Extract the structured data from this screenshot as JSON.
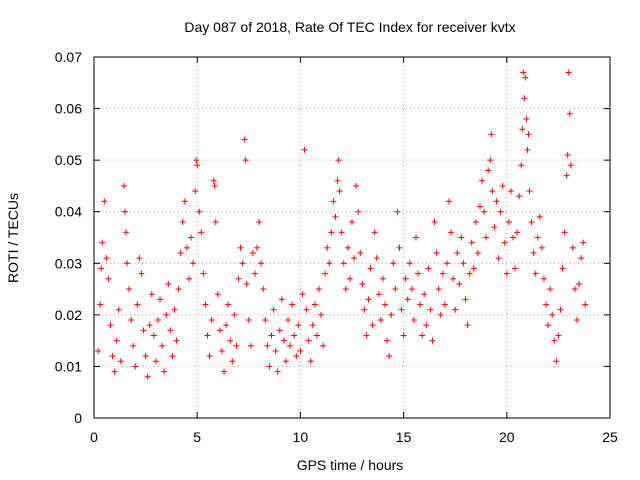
{
  "chart_data": {
    "type": "scatter",
    "title": "Day 087 of 2018, Rate Of TEC Index for receiver kvtx",
    "xlabel": "GPS time / hours",
    "ylabel": "ROTI / TECUs",
    "xlim": [
      0,
      25
    ],
    "ylim": [
      0,
      0.07
    ],
    "xticks": [
      0,
      5,
      10,
      15,
      20,
      25
    ],
    "xtick_labels": [
      "0",
      "5",
      "10",
      "15",
      "20",
      "25"
    ],
    "yticks": [
      0,
      0.01,
      0.02,
      0.03,
      0.04,
      0.05,
      0.06,
      0.07
    ],
    "ytick_labels": [
      "0",
      "0.01",
      "0.02",
      "0.03",
      "0.04",
      "0.05",
      "0.06",
      "0.07"
    ],
    "grid": true,
    "marker": "+",
    "series_color": "#ff0000",
    "series": [
      {
        "name": "ROTI",
        "points": [
          [
            0.2,
            0.013
          ],
          [
            0.3,
            0.022
          ],
          [
            0.35,
            0.029
          ],
          [
            0.4,
            0.034
          ],
          [
            0.5,
            0.042
          ],
          [
            0.6,
            0.031
          ],
          [
            0.7,
            0.027
          ],
          [
            0.8,
            0.018
          ],
          [
            0.9,
            0.012
          ],
          [
            1.0,
            0.009
          ],
          [
            1.1,
            0.015
          ],
          [
            1.2,
            0.021
          ],
          [
            1.3,
            0.011
          ],
          [
            1.45,
            0.045
          ],
          [
            1.5,
            0.04
          ],
          [
            1.55,
            0.036
          ],
          [
            1.6,
            0.03
          ],
          [
            1.7,
            0.025
          ],
          [
            1.8,
            0.019
          ],
          [
            1.9,
            0.014
          ],
          [
            2.0,
            0.01
          ],
          [
            2.1,
            0.022
          ],
          [
            2.2,
            0.031
          ],
          [
            2.3,
            0.028
          ],
          [
            2.4,
            0.017
          ],
          [
            2.5,
            0.012
          ],
          [
            2.6,
            0.008
          ],
          [
            2.7,
            0.018
          ],
          [
            2.8,
            0.024
          ],
          [
            2.9,
            0.016
          ],
          [
            3.0,
            0.011
          ],
          [
            3.1,
            0.019
          ],
          [
            3.2,
            0.023
          ],
          [
            3.3,
            0.014
          ],
          [
            3.4,
            0.009
          ],
          [
            3.5,
            0.02
          ],
          [
            3.6,
            0.026
          ],
          [
            3.7,
            0.017
          ],
          [
            3.8,
            0.012
          ],
          [
            3.9,
            0.021
          ],
          [
            4.0,
            0.015
          ],
          [
            4.1,
            0.025
          ],
          [
            4.2,
            0.032
          ],
          [
            4.3,
            0.038
          ],
          [
            4.4,
            0.042
          ],
          [
            4.5,
            0.033
          ],
          [
            4.6,
            0.027
          ],
          [
            4.7,
            0.035
          ],
          [
            4.8,
            0.03
          ],
          [
            4.9,
            0.044
          ],
          [
            4.95,
            0.05
          ],
          [
            5.0,
            0.049
          ],
          [
            5.1,
            0.04
          ],
          [
            5.2,
            0.036
          ],
          [
            5.3,
            0.028
          ],
          [
            5.4,
            0.022
          ],
          [
            5.5,
            0.016
          ],
          [
            5.6,
            0.012
          ],
          [
            5.7,
            0.019
          ],
          [
            5.8,
            0.046
          ],
          [
            5.85,
            0.045
          ],
          [
            5.9,
            0.038
          ],
          [
            6.0,
            0.024
          ],
          [
            6.1,
            0.017
          ],
          [
            6.2,
            0.013
          ],
          [
            6.3,
            0.009
          ],
          [
            6.4,
            0.018
          ],
          [
            6.5,
            0.022
          ],
          [
            6.6,
            0.015
          ],
          [
            6.7,
            0.011
          ],
          [
            6.8,
            0.02
          ],
          [
            6.9,
            0.014
          ],
          [
            7.0,
            0.027
          ],
          [
            7.1,
            0.033
          ],
          [
            7.2,
            0.03
          ],
          [
            7.3,
            0.054
          ],
          [
            7.35,
            0.05
          ],
          [
            7.4,
            0.026
          ],
          [
            7.5,
            0.019
          ],
          [
            7.6,
            0.014
          ],
          [
            7.7,
            0.032
          ],
          [
            7.8,
            0.028
          ],
          [
            7.9,
            0.033
          ],
          [
            8.0,
            0.038
          ],
          [
            8.1,
            0.03
          ],
          [
            8.2,
            0.025
          ],
          [
            8.3,
            0.019
          ],
          [
            8.4,
            0.014
          ],
          [
            8.5,
            0.01
          ],
          [
            8.6,
            0.016
          ],
          [
            8.7,
            0.021
          ],
          [
            8.8,
            0.013
          ],
          [
            8.9,
            0.009
          ],
          [
            9.0,
            0.017
          ],
          [
            9.1,
            0.023
          ],
          [
            9.2,
            0.015
          ],
          [
            9.3,
            0.011
          ],
          [
            9.4,
            0.019
          ],
          [
            9.5,
            0.014
          ],
          [
            9.6,
            0.022
          ],
          [
            9.7,
            0.016
          ],
          [
            9.8,
            0.012
          ],
          [
            9.9,
            0.018
          ],
          [
            10.0,
            0.013
          ],
          [
            10.1,
            0.024
          ],
          [
            10.2,
            0.052
          ],
          [
            10.3,
            0.021
          ],
          [
            10.4,
            0.015
          ],
          [
            10.5,
            0.011
          ],
          [
            10.6,
            0.018
          ],
          [
            10.7,
            0.022
          ],
          [
            10.8,
            0.016
          ],
          [
            10.9,
            0.025
          ],
          [
            11.0,
            0.02
          ],
          [
            11.1,
            0.014
          ],
          [
            11.2,
            0.028
          ],
          [
            11.3,
            0.033
          ],
          [
            11.4,
            0.03
          ],
          [
            11.5,
            0.036
          ],
          [
            11.6,
            0.042
          ],
          [
            11.7,
            0.039
          ],
          [
            11.8,
            0.046
          ],
          [
            11.85,
            0.05
          ],
          [
            11.9,
            0.044
          ],
          [
            12.0,
            0.036
          ],
          [
            12.1,
            0.03
          ],
          [
            12.2,
            0.025
          ],
          [
            12.3,
            0.033
          ],
          [
            12.4,
            0.027
          ],
          [
            12.5,
            0.038
          ],
          [
            12.6,
            0.031
          ],
          [
            12.7,
            0.045
          ],
          [
            12.8,
            0.04
          ],
          [
            12.9,
            0.032
          ],
          [
            13.0,
            0.026
          ],
          [
            13.1,
            0.021
          ],
          [
            13.2,
            0.016
          ],
          [
            13.3,
            0.023
          ],
          [
            13.4,
            0.029
          ],
          [
            13.5,
            0.018
          ],
          [
            13.6,
            0.036
          ],
          [
            13.7,
            0.031
          ],
          [
            13.8,
            0.024
          ],
          [
            13.9,
            0.019
          ],
          [
            14.0,
            0.027
          ],
          [
            14.1,
            0.022
          ],
          [
            14.2,
            0.015
          ],
          [
            14.3,
            0.012
          ],
          [
            14.4,
            0.02
          ],
          [
            14.5,
            0.03
          ],
          [
            14.6,
            0.025
          ],
          [
            14.7,
            0.04
          ],
          [
            14.8,
            0.033
          ],
          [
            14.9,
            0.021
          ],
          [
            15.0,
            0.016
          ],
          [
            15.1,
            0.027
          ],
          [
            15.2,
            0.023
          ],
          [
            15.3,
            0.03
          ],
          [
            15.4,
            0.025
          ],
          [
            15.5,
            0.019
          ],
          [
            15.6,
            0.035
          ],
          [
            15.7,
            0.028
          ],
          [
            15.8,
            0.022
          ],
          [
            15.9,
            0.016
          ],
          [
            16.0,
            0.024
          ],
          [
            16.1,
            0.018
          ],
          [
            16.2,
            0.029
          ],
          [
            16.3,
            0.021
          ],
          [
            16.4,
            0.015
          ],
          [
            16.5,
            0.038
          ],
          [
            16.6,
            0.032
          ],
          [
            16.7,
            0.025
          ],
          [
            16.8,
            0.02
          ],
          [
            16.9,
            0.028
          ],
          [
            17.0,
            0.022
          ],
          [
            17.1,
            0.03
          ],
          [
            17.2,
            0.042
          ],
          [
            17.3,
            0.036
          ],
          [
            17.4,
            0.027
          ],
          [
            17.5,
            0.021
          ],
          [
            17.6,
            0.032
          ],
          [
            17.7,
            0.026
          ],
          [
            17.8,
            0.035
          ],
          [
            17.9,
            0.03
          ],
          [
            18.0,
            0.023
          ],
          [
            18.1,
            0.018
          ],
          [
            18.2,
            0.028
          ],
          [
            18.3,
            0.034
          ],
          [
            18.4,
            0.029
          ],
          [
            18.5,
            0.038
          ],
          [
            18.6,
            0.032
          ],
          [
            18.7,
            0.041
          ],
          [
            18.8,
            0.046
          ],
          [
            18.9,
            0.04
          ],
          [
            19.0,
            0.035
          ],
          [
            19.1,
            0.048
          ],
          [
            19.2,
            0.05
          ],
          [
            19.25,
            0.055
          ],
          [
            19.3,
            0.044
          ],
          [
            19.4,
            0.037
          ],
          [
            19.5,
            0.042
          ],
          [
            19.6,
            0.031
          ],
          [
            19.7,
            0.04
          ],
          [
            19.8,
            0.045
          ],
          [
            19.9,
            0.034
          ],
          [
            20.0,
            0.028
          ],
          [
            20.1,
            0.038
          ],
          [
            20.2,
            0.044
          ],
          [
            20.3,
            0.035
          ],
          [
            20.4,
            0.029
          ],
          [
            20.5,
            0.036
          ],
          [
            20.6,
            0.043
          ],
          [
            20.7,
            0.049
          ],
          [
            20.75,
            0.056
          ],
          [
            20.8,
            0.067
          ],
          [
            20.85,
            0.062
          ],
          [
            20.9,
            0.066
          ],
          [
            20.95,
            0.058
          ],
          [
            21.0,
            0.052
          ],
          [
            21.05,
            0.055
          ],
          [
            21.1,
            0.044
          ],
          [
            21.2,
            0.038
          ],
          [
            21.3,
            0.032
          ],
          [
            21.4,
            0.028
          ],
          [
            21.5,
            0.035
          ],
          [
            21.6,
            0.039
          ],
          [
            21.7,
            0.033
          ],
          [
            21.8,
            0.027
          ],
          [
            21.9,
            0.022
          ],
          [
            22.0,
            0.018
          ],
          [
            22.1,
            0.025
          ],
          [
            22.2,
            0.02
          ],
          [
            22.3,
            0.015
          ],
          [
            22.4,
            0.011
          ],
          [
            22.5,
            0.016
          ],
          [
            22.6,
            0.021
          ],
          [
            22.7,
            0.029
          ],
          [
            22.8,
            0.036
          ],
          [
            22.9,
            0.047
          ],
          [
            22.95,
            0.051
          ],
          [
            23.0,
            0.067
          ],
          [
            23.05,
            0.059
          ],
          [
            23.1,
            0.049
          ],
          [
            23.2,
            0.033
          ],
          [
            23.3,
            0.025
          ],
          [
            23.4,
            0.019
          ],
          [
            23.5,
            0.026
          ],
          [
            23.6,
            0.031
          ],
          [
            23.7,
            0.034
          ],
          [
            23.8,
            0.022
          ]
        ]
      }
    ]
  }
}
